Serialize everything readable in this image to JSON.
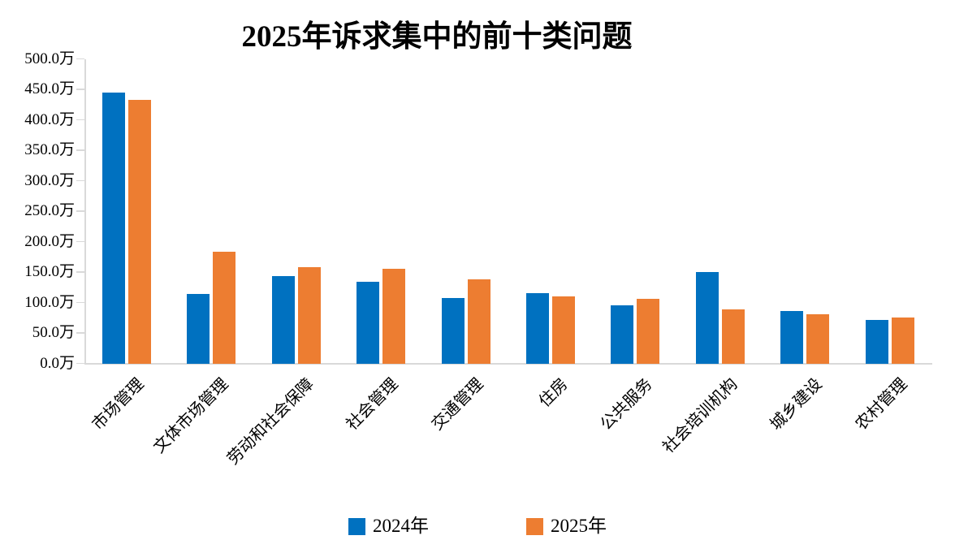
{
  "title": "2025年诉求集中的前十类问题",
  "colors": {
    "series_2024": "#0071C0",
    "series_2025": "#ED7D31",
    "axis": "#D9D9D9",
    "text": "#000000",
    "background": "#FFFFFF"
  },
  "y_axis": {
    "tick_labels": [
      "500.0万",
      "450.0万",
      "400.0万",
      "350.0万",
      "300.0万",
      "250.0万",
      "200.0万",
      "150.0万",
      "100.0万",
      "50.0万",
      "0.0万"
    ]
  },
  "legend": {
    "items": [
      {
        "label": "2024年",
        "color_key": "series_2024"
      },
      {
        "label": "2025年",
        "color_key": "series_2025"
      }
    ]
  },
  "chart_data": {
    "type": "bar",
    "title": "2025年诉求集中的前十类问题",
    "categories": [
      "市场管理",
      "文体市场管理",
      "劳动和社会保障",
      "社会管理",
      "交通管理",
      "住房",
      "公共服务",
      "社会培训机构",
      "城乡建设",
      "农村管理"
    ],
    "series": [
      {
        "name": "2024年",
        "color": "#0071C0",
        "values": [
          445,
          114,
          143,
          134,
          107,
          115,
          96,
          150,
          86,
          72
        ]
      },
      {
        "name": "2025年",
        "color": "#ED7D31",
        "values": [
          433,
          184,
          158,
          155,
          138,
          110,
          106,
          89,
          81,
          75
        ]
      }
    ],
    "unit": "万",
    "ylabel": "",
    "xlabel": "",
    "ylim": [
      0,
      500
    ],
    "ytick_step": 50,
    "grid": false,
    "legend_position": "bottom"
  }
}
